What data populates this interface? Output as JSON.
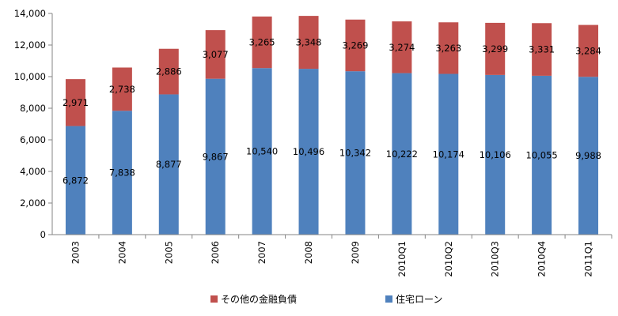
{
  "chart_data": {
    "type": "bar",
    "stacked": true,
    "categories": [
      "2003",
      "2004",
      "2005",
      "2006",
      "2007",
      "2008",
      "2009",
      "2010Q1",
      "2010Q2",
      "2010Q3",
      "2010Q4",
      "2011Q1"
    ],
    "series": [
      {
        "name": "住宅ローン",
        "color": "#4F81BD",
        "values": [
          6872,
          7838,
          8877,
          9867,
          10540,
          10496,
          10342,
          10222,
          10174,
          10106,
          10055,
          9988
        ],
        "labels": [
          "6,872",
          "7,838",
          "8,877",
          "9,867",
          "10,540",
          "10,496",
          "10,342",
          "10,222",
          "10,174",
          "10,106",
          "10,055",
          "9,988"
        ]
      },
      {
        "name": "その他の金融負債",
        "color": "#C0504D",
        "values": [
          2971,
          2738,
          2886,
          3077,
          3265,
          3348,
          3269,
          3274,
          3263,
          3299,
          3331,
          3284
        ],
        "labels": [
          "2,971",
          "2,738",
          "2,886",
          "3,077",
          "3,265",
          "3,348",
          "3,269",
          "3,274",
          "3,263",
          "3,299",
          "3,331",
          "3,284"
        ]
      }
    ],
    "ylim": [
      0,
      14000
    ],
    "yticks": [
      "0",
      "2,000",
      "4,000",
      "6,000",
      "8,000",
      "10,000",
      "12,000",
      "14,000"
    ],
    "grid": false,
    "legend_position": "bottom",
    "title": "",
    "xlabel": "",
    "ylabel": ""
  },
  "legend": [
    {
      "label": "その他の金融負債",
      "color": "#C0504D"
    },
    {
      "label": "住宅ローン",
      "color": "#4F81BD"
    }
  ]
}
